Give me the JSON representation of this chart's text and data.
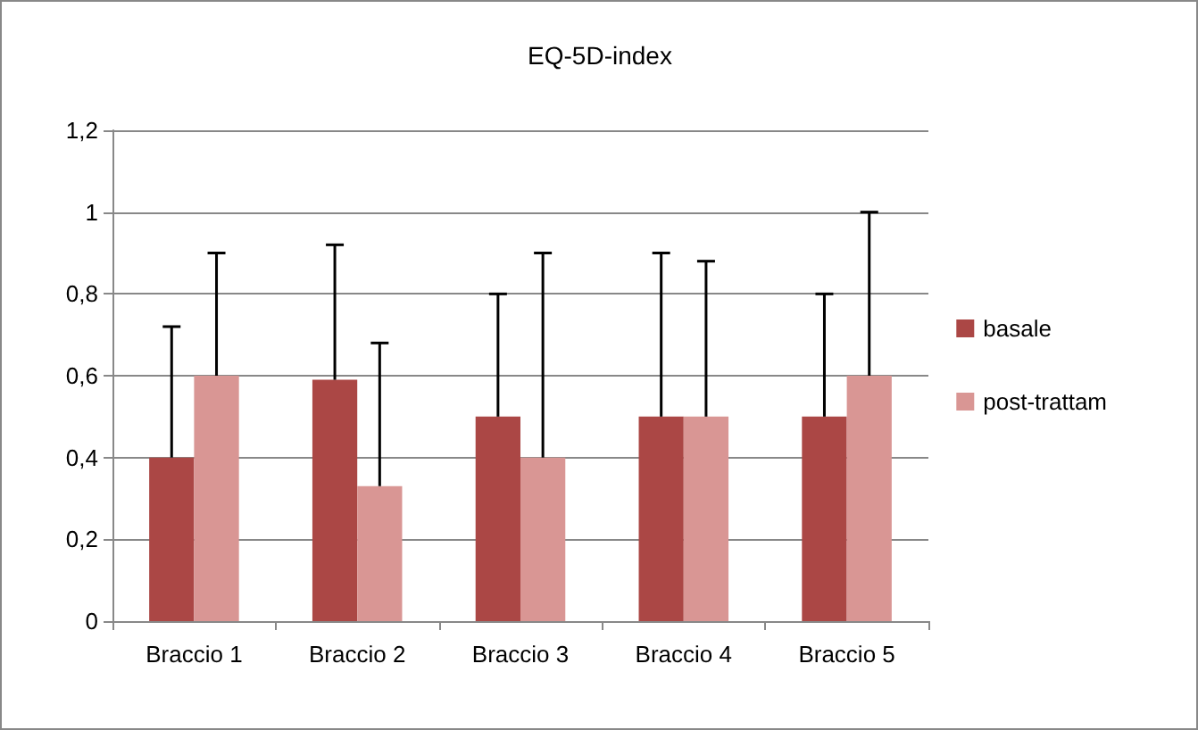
{
  "chart_data": {
    "type": "bar",
    "title": "EQ-5D-index",
    "categories": [
      "Braccio 1",
      "Braccio 2",
      "Braccio 3",
      "Braccio 4",
      "Braccio 5"
    ],
    "series": [
      {
        "name": "basale",
        "color": "#ab4745",
        "values": [
          0.4,
          0.59,
          0.5,
          0.5,
          0.5
        ],
        "errors": [
          [
            0.4,
            0.72
          ],
          [
            0.59,
            0.92
          ],
          [
            0.5,
            0.8
          ],
          [
            0.5,
            0.9
          ],
          [
            0.5,
            0.8
          ]
        ]
      },
      {
        "name": "post-trattam",
        "color": "#d99694",
        "values": [
          0.6,
          0.33,
          0.4,
          0.5,
          0.6
        ],
        "errors": [
          [
            0.6,
            0.9
          ],
          [
            0.33,
            0.68
          ],
          [
            0.4,
            0.9
          ],
          [
            0.5,
            0.88
          ],
          [
            0.6,
            1.0
          ]
        ]
      }
    ],
    "ylim": [
      0,
      1.2
    ],
    "yticks": [
      {
        "value": 0,
        "label": "0"
      },
      {
        "value": 0.2,
        "label": "0,2"
      },
      {
        "value": 0.4,
        "label": "0,4"
      },
      {
        "value": 0.6,
        "label": "0,6"
      },
      {
        "value": 0.8,
        "label": "0,8"
      },
      {
        "value": 1,
        "label": "1"
      },
      {
        "value": 1.2,
        "label": "1,2"
      }
    ],
    "grid": "y",
    "legend": "right"
  }
}
